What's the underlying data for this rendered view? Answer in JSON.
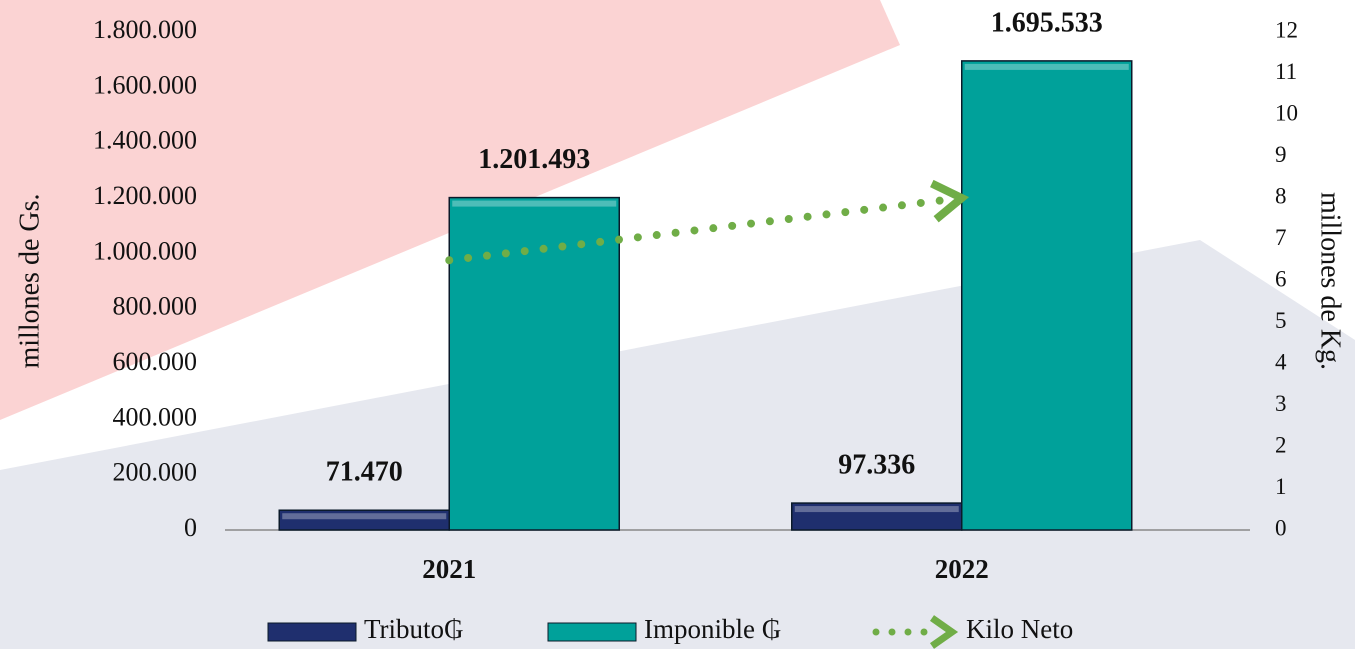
{
  "chart_data": {
    "type": "bar",
    "categories": [
      "2021",
      "2022"
    ],
    "series": [
      {
        "name": "Tributo₲",
        "color": "#1f2f6e",
        "values": [
          71470,
          97336
        ],
        "value_labels": [
          "71.470",
          "97.336"
        ]
      },
      {
        "name": "Imponible ₲",
        "color": "#00a19a",
        "values": [
          1201493,
          1695533
        ],
        "value_labels": [
          "1.201.493",
          "1.695.533"
        ]
      },
      {
        "name": "Kilo Neto",
        "color": "#70ad47",
        "type": "line",
        "axis": "y2",
        "values": [
          6.5,
          8.0
        ]
      }
    ],
    "y_label": "millones de Gs.",
    "y2_label": "millones de Kg.",
    "ylim": [
      0,
      1800000
    ],
    "yticks": [
      0,
      {
        "value": 200000,
        "label": "200.000"
      },
      {
        "value": 400000,
        "label": "400.000"
      },
      {
        "value": 600000,
        "label": "600.000"
      },
      {
        "value": 800000,
        "label": "800.000"
      },
      {
        "value": 1000000,
        "label": "1.000.000"
      },
      {
        "value": 1200000,
        "label": "1.200.000"
      },
      {
        "value": 1400000,
        "label": "1.400.000"
      },
      {
        "value": 1600000,
        "label": "1.600.000"
      },
      {
        "value": 1800000,
        "label": "1.800.000"
      }
    ],
    "y2lim": [
      0,
      12
    ],
    "y2ticks": [
      0,
      1,
      2,
      3,
      4,
      5,
      6,
      7,
      8,
      9,
      10,
      11,
      12
    ],
    "legend": "bottom"
  }
}
